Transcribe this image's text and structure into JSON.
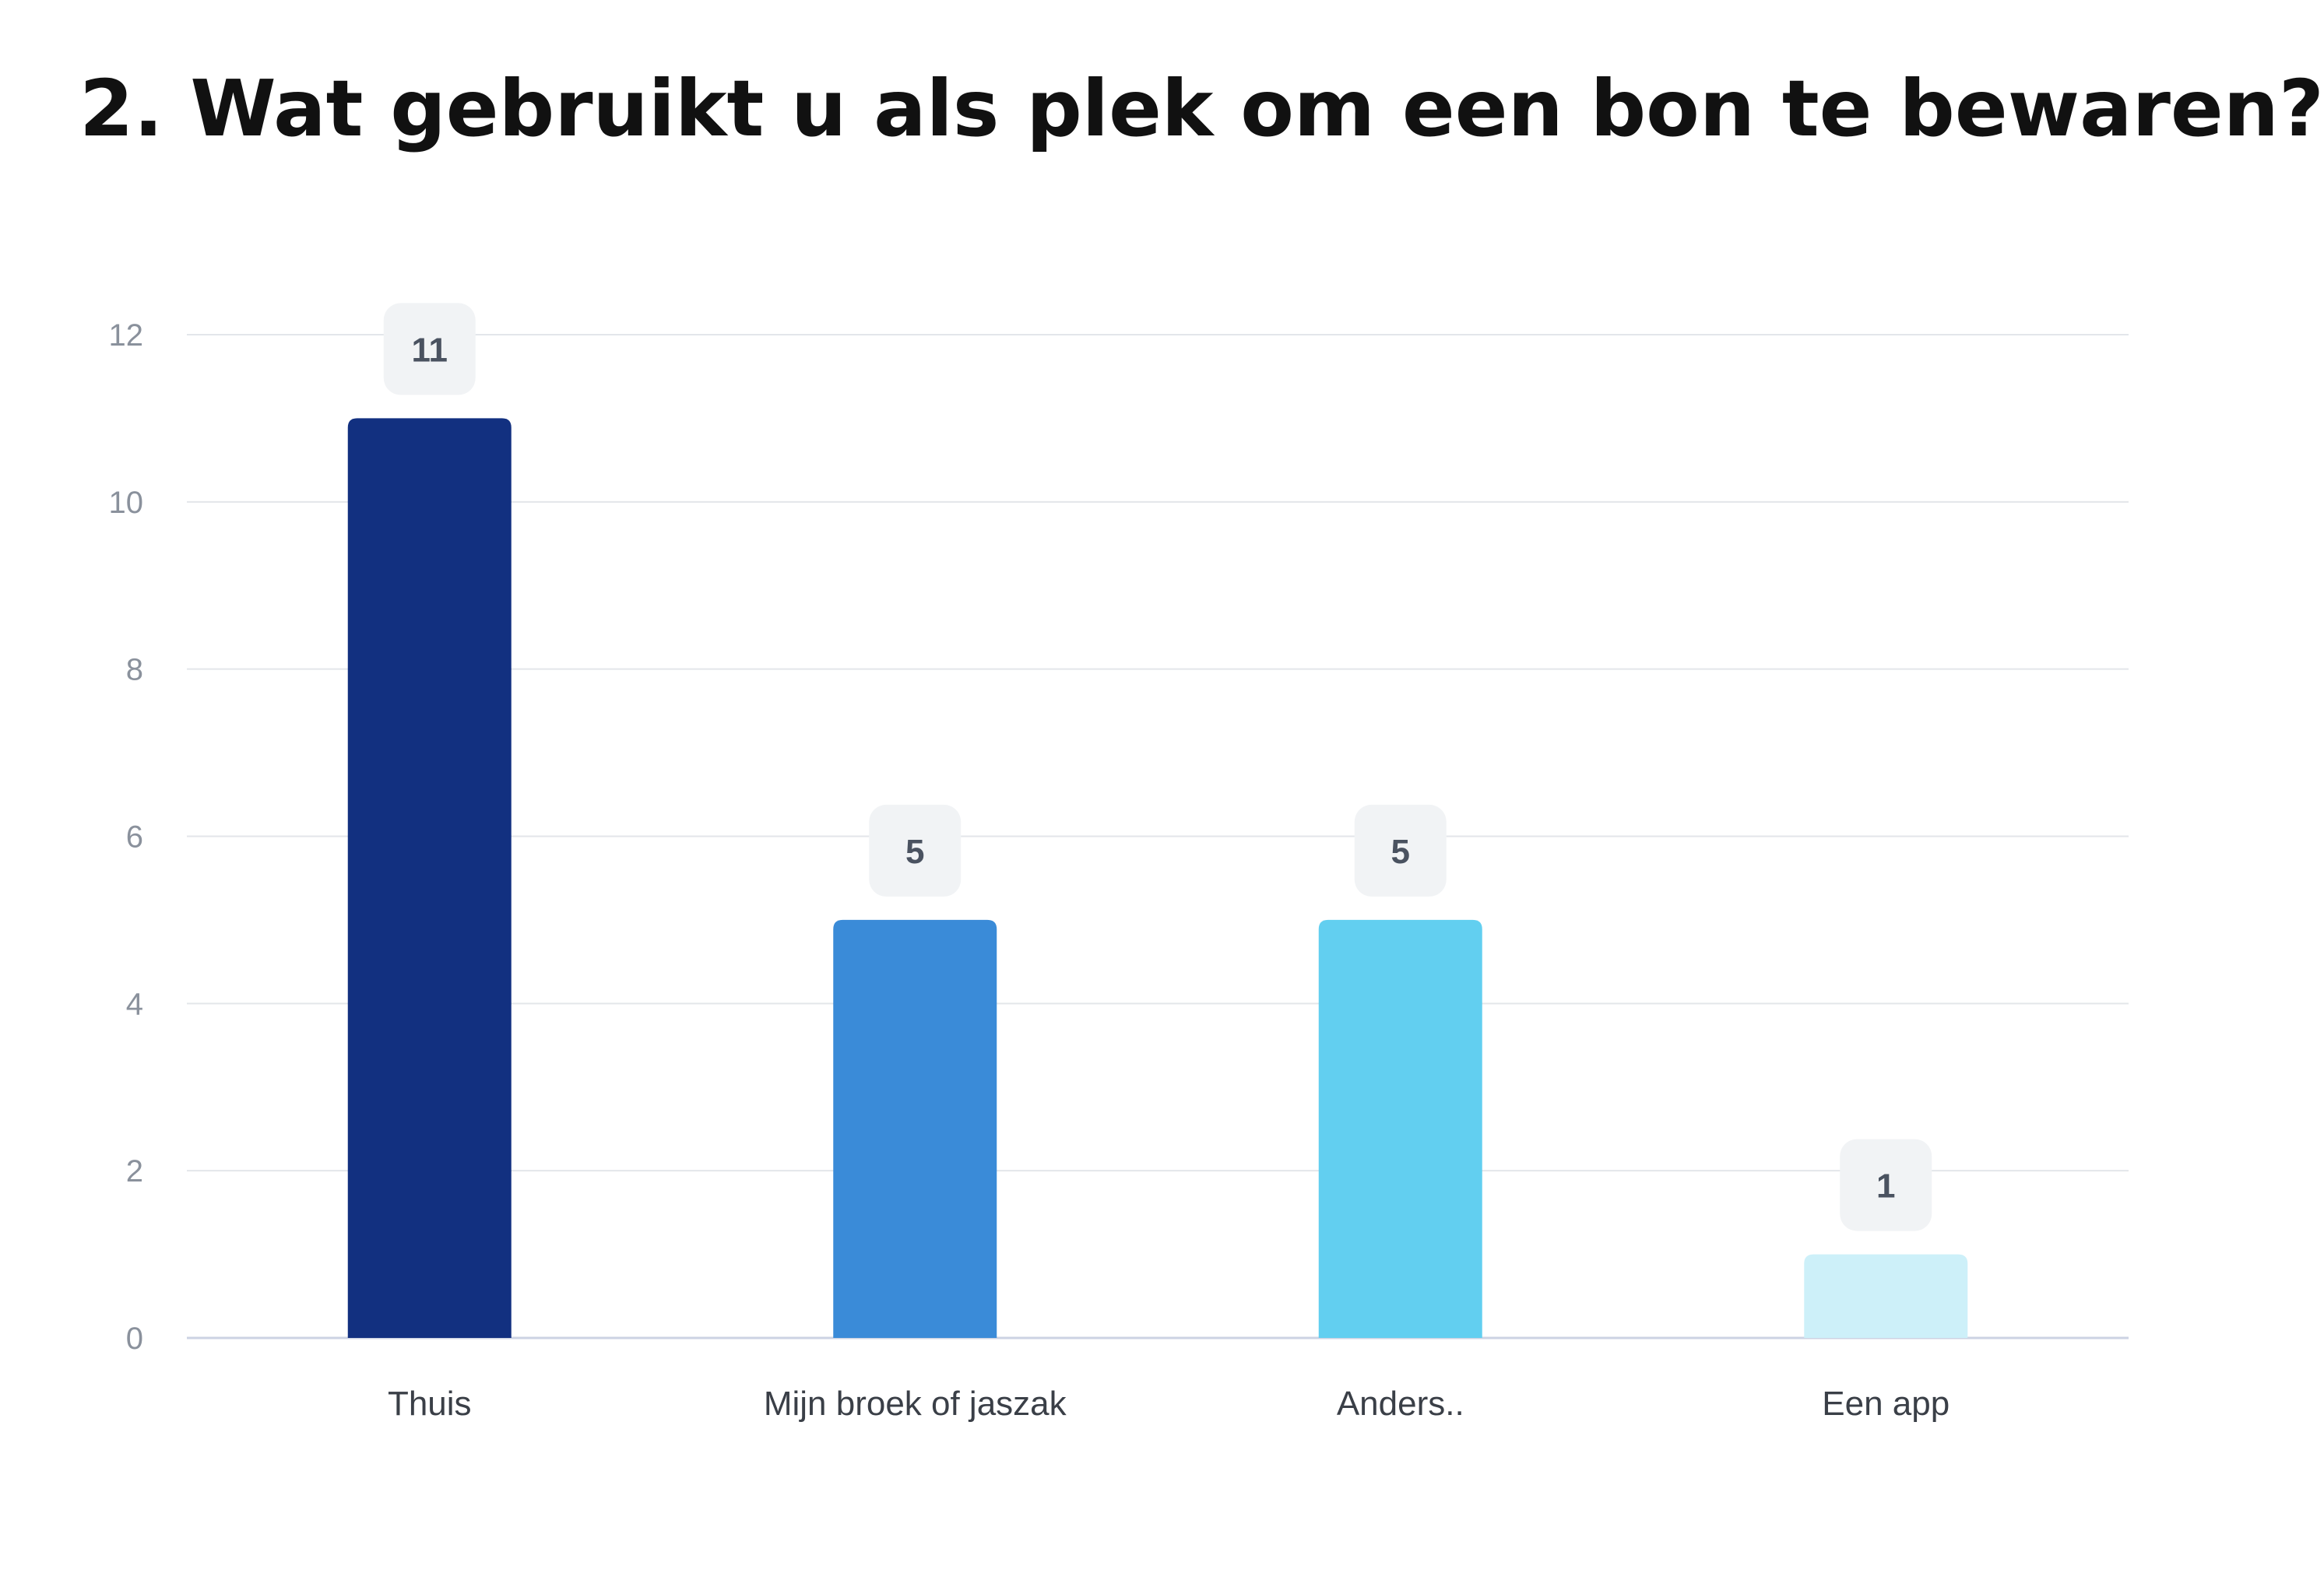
{
  "chart_data": {
    "type": "bar",
    "title": "2. Wat gebruikt u als plek om een bon te bewaren?",
    "categories": [
      "Thuis",
      "Mijn broek of jaszak",
      "Anders..",
      "Een app"
    ],
    "values": [
      11,
      5,
      5,
      1
    ],
    "bar_colors": [
      "#123080",
      "#3a8bd8",
      "#62cff0",
      "#cdf0f9"
    ],
    "ylim": [
      0,
      12
    ],
    "yticks": [
      "0",
      "2",
      "4",
      "6",
      "8",
      "10",
      "12"
    ],
    "data_labels": [
      "11",
      "5",
      "5",
      "1"
    ],
    "xlabel": "",
    "ylabel": "",
    "grid": true,
    "legend": "none"
  },
  "colors": {
    "grid": "#e3e6ea",
    "baseline": "#ccd3e3",
    "label_box": "#f1f3f5"
  }
}
